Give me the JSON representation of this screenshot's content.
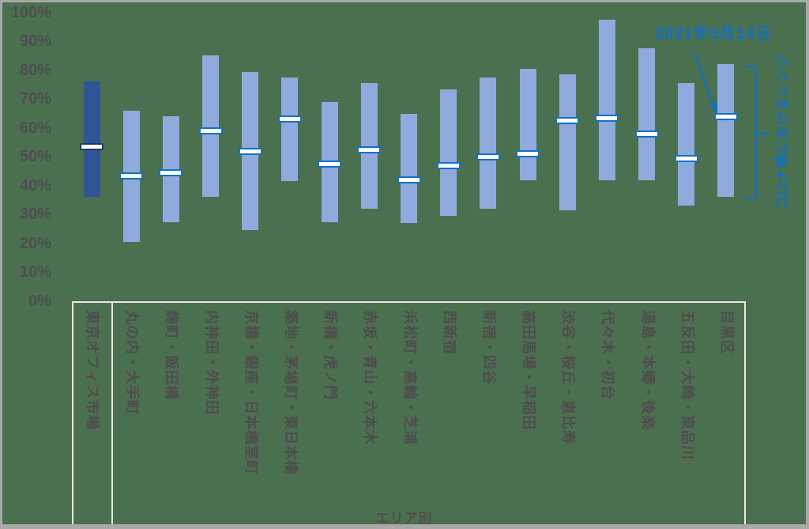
{
  "chart_data": {
    "type": "bar",
    "subtype": "floating-range-bar-with-marker",
    "title": "",
    "xlabel": "エリア別",
    "ylabel": "",
    "ylim": [
      0,
      100
    ],
    "grid": false,
    "legend": false,
    "y_ticks": [
      "0%",
      "10%",
      "20%",
      "30%",
      "40%",
      "50%",
      "60%",
      "70%",
      "80%",
      "90%",
      "100%"
    ],
    "annotation": {
      "text": "2021年5月14日",
      "points_to": "目黒区 marker"
    },
    "brace_label": "コロナ禍におけるレンジ",
    "bars": [
      {
        "label": "東京オフィス市場",
        "low": 36,
        "high": 76,
        "marker": 53.5,
        "emphasis": true
      },
      {
        "label": "丸の内・大手町",
        "low": 20.5,
        "high": 66,
        "marker": 43.5,
        "emphasis": false
      },
      {
        "label": "麹町・飯田橋",
        "low": 27.5,
        "high": 64,
        "marker": 44.5,
        "emphasis": false
      },
      {
        "label": "内神田・外神田",
        "low": 36,
        "high": 85,
        "marker": 59,
        "emphasis": false
      },
      {
        "label": "京橋・銀座・日本橋室町",
        "low": 24.5,
        "high": 79.5,
        "marker": 52,
        "emphasis": false
      },
      {
        "label": "築地・茅場町・東日本橋",
        "low": 41.5,
        "high": 77.5,
        "marker": 63,
        "emphasis": false
      },
      {
        "label": "新橋・虎ノ門",
        "low": 27.5,
        "high": 69,
        "marker": 47.5,
        "emphasis": false
      },
      {
        "label": "赤坂・青山・六本木",
        "low": 32,
        "high": 75.5,
        "marker": 52.5,
        "emphasis": false
      },
      {
        "label": "浜松町・高輪・芝浦",
        "low": 27,
        "high": 65,
        "marker": 42,
        "emphasis": false
      },
      {
        "label": "西新宿",
        "low": 29.5,
        "high": 73.5,
        "marker": 47,
        "emphasis": false
      },
      {
        "label": "新宿・四谷",
        "low": 32,
        "high": 77.5,
        "marker": 50,
        "emphasis": false
      },
      {
        "label": "高田馬場・早稲田",
        "low": 42,
        "high": 80.5,
        "marker": 51,
        "emphasis": false
      },
      {
        "label": "渋谷・桜丘・恵比寿",
        "low": 31.5,
        "high": 78.5,
        "marker": 62.5,
        "emphasis": false
      },
      {
        "label": "代々木・初台",
        "low": 42,
        "high": 97.5,
        "marker": 63.5,
        "emphasis": false
      },
      {
        "label": "湯島・本郷・後楽",
        "low": 42,
        "high": 87.5,
        "marker": 58,
        "emphasis": false
      },
      {
        "label": "五反田・大崎・東品川",
        "low": 33,
        "high": 75.5,
        "marker": 49.5,
        "emphasis": false
      },
      {
        "label": "目黒区",
        "low": 36,
        "high": 82,
        "marker": 64,
        "emphasis": false
      }
    ],
    "colors": {
      "background": "#4b7050",
      "frame_border": "#a9a9a9",
      "bar_fill": "#8faadc",
      "bar_fill_emphasis": "#2f5597",
      "marker_fill": "#ffffff",
      "marker_border": "#1271c4",
      "marker_border_emphasis": "#1f3864",
      "accent_blue": "#0f70c0",
      "axis_text": "#4d4d4d",
      "label_box_line": "#e8e8e8"
    }
  }
}
